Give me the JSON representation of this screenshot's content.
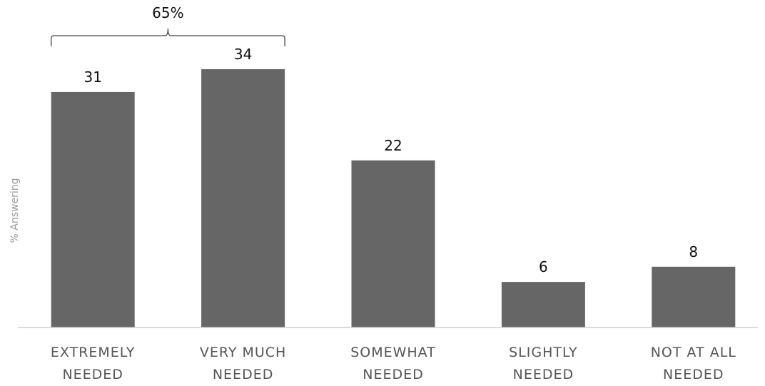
{
  "chart_data": {
    "type": "bar",
    "ylabel": "% Answering",
    "categories": [
      [
        "EXTREMELY",
        "NEEDED"
      ],
      [
        "VERY MUCH",
        "NEEDED"
      ],
      [
        "SOMEWHAT",
        "NEEDED"
      ],
      [
        "SLIGHTLY",
        "NEEDED"
      ],
      [
        "NOT AT ALL",
        "NEEDED"
      ]
    ],
    "values": [
      31,
      34,
      22,
      6,
      8
    ],
    "data_labels": [
      "31",
      "34",
      "22",
      "6",
      "8"
    ],
    "ylim": [
      0,
      34
    ],
    "grid": false,
    "bar_color": "#666666",
    "annotations": [
      {
        "label": "65%",
        "spans_categories": [
          0,
          1
        ]
      }
    ]
  }
}
